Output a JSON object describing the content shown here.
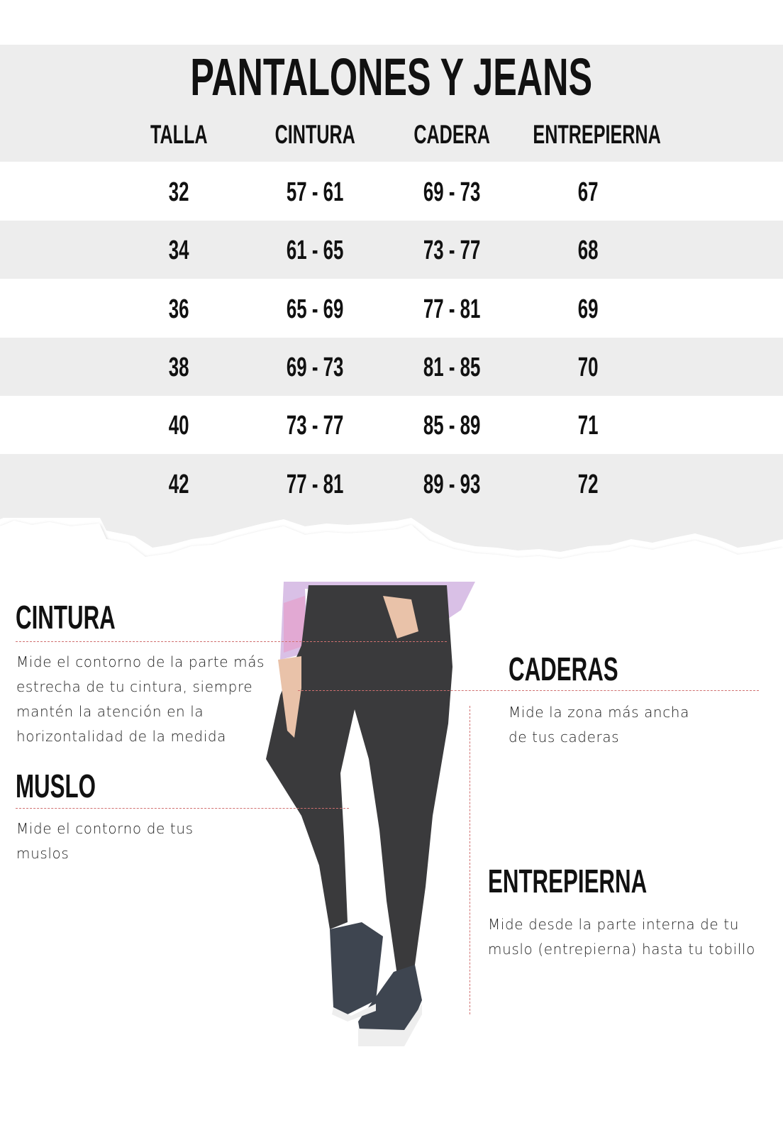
{
  "title": "PANTALONES Y JEANS",
  "table": {
    "headers": [
      "TALLA",
      "CINTURA",
      "CADERA",
      "ENTREPIERNA"
    ],
    "rows": [
      [
        "32",
        "57 - 61",
        "69 - 73",
        "67"
      ],
      [
        "34",
        "61 - 65",
        "73 - 77",
        "68"
      ],
      [
        "36",
        "65 - 69",
        "77 - 81",
        "69"
      ],
      [
        "38",
        "69 - 73",
        "81 - 85",
        "70"
      ],
      [
        "40",
        "73 - 77",
        "85 - 89",
        "71"
      ],
      [
        "42",
        "77 - 81",
        "89 - 93",
        "72"
      ]
    ]
  },
  "guide": {
    "cintura": {
      "heading": "CINTURA",
      "lines": [
        "Mide el contorno de la parte más",
        "estrecha de tu cintura, siempre",
        "mantén la atención en  la",
        "horizontalidad de la medida"
      ]
    },
    "caderas": {
      "heading": "CADERAS",
      "lines": [
        "Mide la zona más ancha",
        "de tus caderas"
      ]
    },
    "muslo": {
      "heading": "MUSLO",
      "lines": [
        "Mide el contorno de tus",
        "muslos"
      ]
    },
    "entrepierna": {
      "heading": "ENTREPIERNA",
      "lines": [
        "Mide desde la parte interna de tu",
        "muslo (entrepierna) hasta tu tobillo"
      ]
    }
  },
  "colors": {
    "band": "#ededed",
    "measure_line": "#d07070",
    "denim": "#3a3a3c"
  }
}
